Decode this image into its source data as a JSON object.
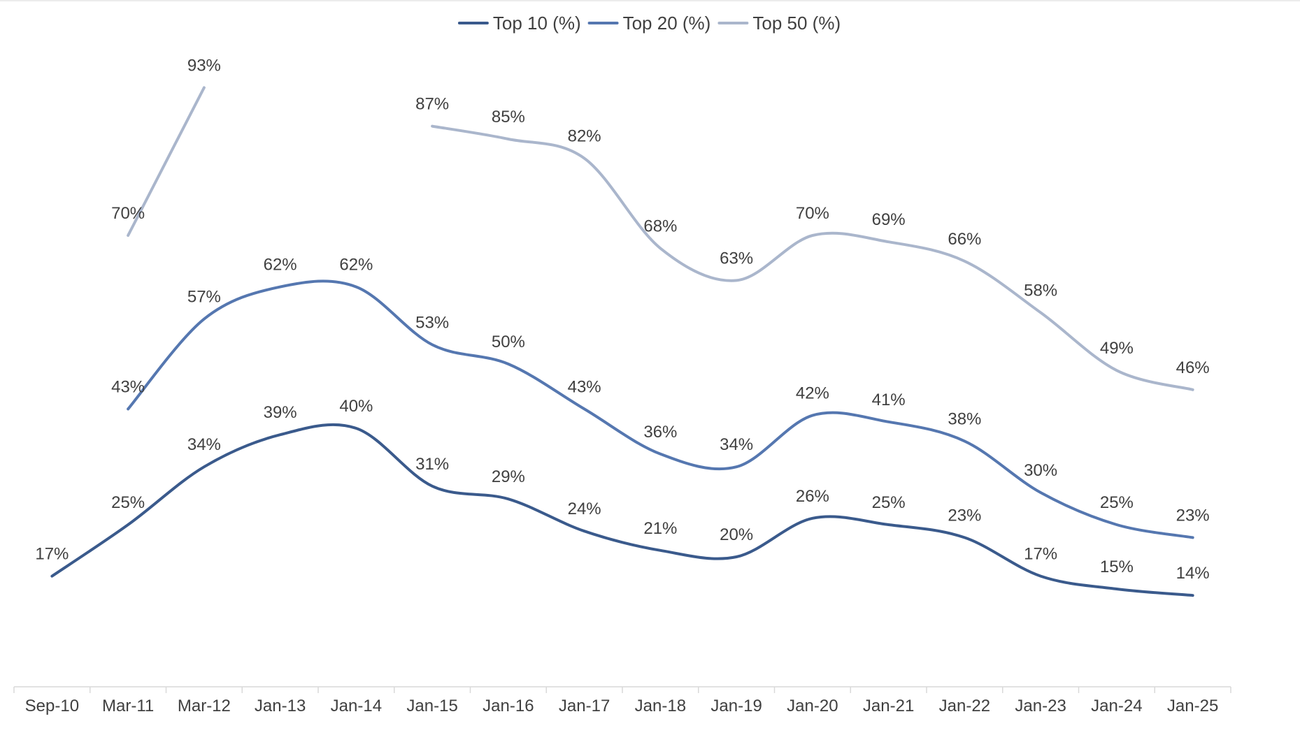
{
  "chart_data": {
    "type": "line",
    "title": "",
    "xlabel": "",
    "ylabel": "",
    "ylim": [
      0,
      100
    ],
    "grid": false,
    "legend_position": "top-center",
    "categories": [
      "Sep-10",
      "Mar-11",
      "Mar-12",
      "Jan-13",
      "Jan-14",
      "Jan-15",
      "Jan-16",
      "Jan-17",
      "Jan-18",
      "Jan-19",
      "Jan-20",
      "Jan-21",
      "Jan-22",
      "Jan-23",
      "Jan-24",
      "Jan-25"
    ],
    "series": [
      {
        "name": "Top 10 (%)",
        "color": "#3a5a8c",
        "values": [
          17,
          25,
          34,
          39,
          40,
          31,
          29,
          24,
          21,
          20,
          26,
          25,
          23,
          17,
          15,
          14
        ],
        "labels": [
          "17%",
          "25%",
          "34%",
          "39%",
          "40%",
          "31%",
          "29%",
          "24%",
          "21%",
          "20%",
          "26%",
          "25%",
          "23%",
          "17%",
          "15%",
          "14%"
        ]
      },
      {
        "name": "Top 20 (%)",
        "color": "#5577b0",
        "values": [
          null,
          43,
          57,
          62,
          62,
          53,
          50,
          43,
          36,
          34,
          42,
          41,
          38,
          30,
          25,
          23
        ],
        "labels": [
          null,
          "43%",
          "57%",
          "62%",
          "62%",
          "53%",
          "50%",
          "43%",
          "36%",
          "34%",
          "42%",
          "41%",
          "38%",
          "30%",
          "25%",
          "23%"
        ]
      },
      {
        "name": "Top 50 (%)",
        "color": "#aab6cc",
        "values": [
          null,
          70,
          93,
          null,
          null,
          87,
          85,
          82,
          68,
          63,
          70,
          69,
          66,
          58,
          49,
          46
        ],
        "labels": [
          null,
          "70%",
          "93%",
          null,
          null,
          "87%",
          "85%",
          "82%",
          "68%",
          "63%",
          "70%",
          "69%",
          "66%",
          "58%",
          "49%",
          "46%"
        ]
      }
    ]
  }
}
